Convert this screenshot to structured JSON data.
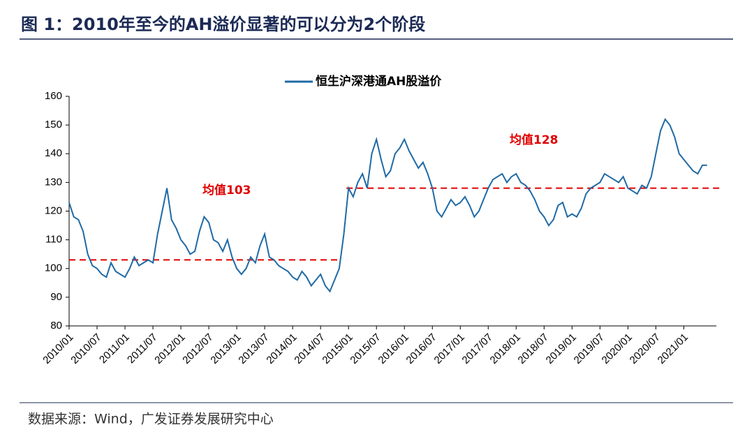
{
  "chart_data": {
    "type": "line",
    "title": "图 1：2010年至今的AH溢价显著的可以分为2个阶段",
    "source": "数据来源：Wind，广发证券发展研究中心",
    "categories": [
      "2010/01",
      null,
      null,
      null,
      null,
      null,
      "2010/07",
      null,
      null,
      null,
      null,
      null,
      "2011/01",
      null,
      null,
      null,
      null,
      null,
      "2011/07",
      null,
      null,
      null,
      null,
      null,
      "2012/01",
      null,
      null,
      null,
      null,
      null,
      "2012/07",
      null,
      null,
      null,
      null,
      null,
      "2013/01",
      null,
      null,
      null,
      null,
      null,
      "2013/07",
      null,
      null,
      null,
      null,
      null,
      "2014/01",
      null,
      null,
      null,
      null,
      null,
      "2014/07",
      null,
      null,
      null,
      null,
      null,
      "2015/01",
      null,
      null,
      null,
      null,
      null,
      "2015/07",
      null,
      null,
      null,
      null,
      null,
      "2016/01",
      null,
      null,
      null,
      null,
      null,
      "2016/07",
      null,
      null,
      null,
      null,
      null,
      "2017/01",
      null,
      null,
      null,
      null,
      null,
      "2017/07",
      null,
      null,
      null,
      null,
      null,
      "2018/01",
      null,
      null,
      null,
      null,
      null,
      "2018/07",
      null,
      null,
      null,
      null,
      null,
      "2019/01",
      null,
      null,
      null,
      null,
      null,
      "2019/07",
      null,
      null,
      null,
      null,
      null,
      "2020/01",
      null,
      null,
      null,
      null,
      null,
      "2020/07",
      null,
      null,
      null,
      null,
      null,
      "2021/01",
      null,
      null,
      null,
      null,
      null
    ],
    "series": [
      {
        "name": "恒生沪深港通AH股溢价",
        "color": "#1f6aa5",
        "values": [
          123,
          118,
          117,
          113,
          105,
          101,
          100,
          98,
          97,
          102,
          99,
          98,
          97,
          100,
          104,
          101,
          102,
          103,
          102,
          112,
          120,
          128,
          117,
          114,
          110,
          108,
          105,
          106,
          113,
          118,
          116,
          110,
          109,
          106,
          110,
          104,
          100,
          98,
          100,
          104,
          102,
          108,
          112,
          104,
          103,
          101,
          100,
          99,
          97,
          96,
          99,
          97,
          94,
          96,
          98,
          94,
          92,
          96,
          100,
          112,
          128,
          125,
          130,
          133,
          128,
          140,
          145,
          138,
          132,
          134,
          140,
          142,
          145,
          141,
          138,
          135,
          137,
          133,
          128,
          120,
          118,
          121,
          124,
          122,
          123,
          125,
          122,
          118,
          120,
          124,
          128,
          131,
          132,
          133,
          130,
          132,
          133,
          130,
          129,
          127,
          124,
          120,
          118,
          115,
          117,
          122,
          123,
          118,
          119,
          118,
          121,
          126,
          128,
          129,
          130,
          133,
          132,
          131,
          130,
          132,
          128,
          127,
          126,
          129,
          128,
          132,
          140,
          148,
          152,
          150,
          146,
          140,
          138,
          136,
          134,
          133,
          136,
          136
        ]
      }
    ],
    "mean_lines": [
      {
        "label": "均值103",
        "value": 103,
        "color": "#e00000"
      },
      {
        "label": "均值128",
        "value": 128,
        "color": "#e00000"
      }
    ],
    "ylim": [
      80,
      160
    ],
    "yticks": [
      80,
      90,
      100,
      110,
      120,
      130,
      140,
      150,
      160
    ],
    "legend": "top"
  }
}
